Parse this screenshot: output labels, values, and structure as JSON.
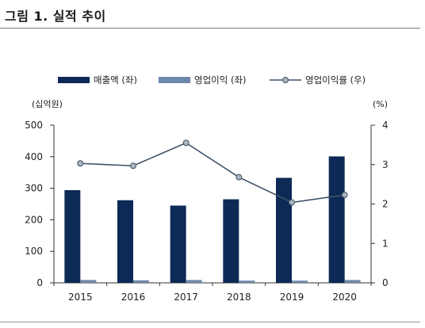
{
  "figure": {
    "title": "그림 1. 실적 추이"
  },
  "colors": {
    "sales": "#0d2a56",
    "op": "#6f88aa",
    "line": "#3f5268",
    "marker": "#a9b3bd",
    "axis": "#333333"
  },
  "chart_data": {
    "type": "bar",
    "title": "",
    "categories": [
      "2015",
      "2016",
      "2017",
      "2018",
      "2019",
      "2020"
    ],
    "y_left": {
      "unit_label": "(십억원)",
      "ylim": [
        0,
        500
      ],
      "ticks": [
        0,
        100,
        200,
        300,
        400,
        500
      ]
    },
    "y_right": {
      "unit_label": "(%)",
      "ylim": [
        0,
        4
      ],
      "ticks": [
        0,
        1,
        2,
        3,
        4
      ]
    },
    "legend_position": "top",
    "grid": false,
    "series": [
      {
        "name": "매출액 (좌)",
        "type": "bar",
        "axis": "left",
        "values": [
          294,
          262,
          245,
          265,
          333,
          401
        ]
      },
      {
        "name": "영업이익 (좌)",
        "type": "bar",
        "axis": "left",
        "values": [
          9,
          8,
          9,
          7,
          7,
          9
        ]
      },
      {
        "name": "영업이익률 (우)",
        "type": "line",
        "axis": "right",
        "values": [
          3.03,
          2.97,
          3.55,
          2.68,
          2.04,
          2.23
        ]
      }
    ]
  }
}
